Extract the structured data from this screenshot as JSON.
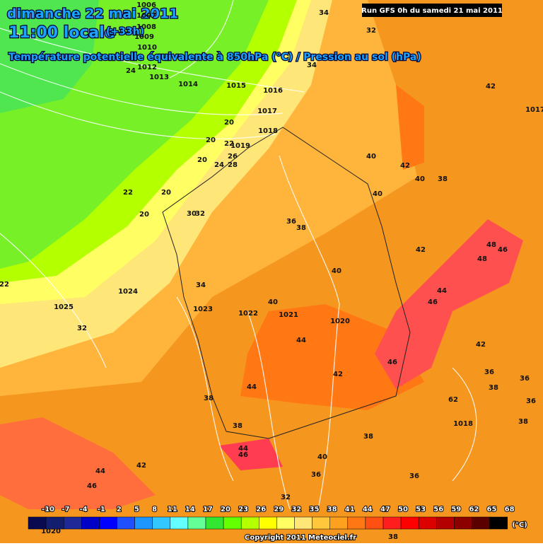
{
  "header": {
    "date": "dimanche 22 mai 2011",
    "time": "11:00 locale",
    "offset": "(+33h)",
    "subtitle": "Température potentielle équivalente à 850hPa (°C) / Pression au sol (hPa)",
    "run": "Run GFS 0h du samedi 21 mai 2011"
  },
  "legend": {
    "ticks": [
      "-10",
      "-7",
      "-4",
      "-1",
      "2",
      "5",
      "8",
      "11",
      "14",
      "17",
      "20",
      "23",
      "26",
      "29",
      "32",
      "35",
      "38",
      "41",
      "44",
      "47",
      "50",
      "53",
      "56",
      "59",
      "62",
      "65",
      "68"
    ],
    "colors": [
      "#0a0a50",
      "#141e6e",
      "#1e2896",
      "#0000c8",
      "#0000ff",
      "#1e50ff",
      "#1e96ff",
      "#32c8ff",
      "#64ffff",
      "#64ff96",
      "#32e632",
      "#64ff00",
      "#b4ff00",
      "#ffff00",
      "#ffff64",
      "#ffe678",
      "#ffc83c",
      "#ffa01e",
      "#ff7814",
      "#ff5014",
      "#ff1e1e",
      "#ff0000",
      "#dc0000",
      "#b40000",
      "#8c0000",
      "#5a0000",
      "#000000"
    ],
    "unit": "(°C)"
  },
  "footer": "Copyright 2011 Meteociel.fr",
  "labels": [
    "34",
    "32",
    "34",
    "42",
    "24",
    "20",
    "20",
    "22",
    "20",
    "24",
    "26",
    "28",
    "40",
    "42",
    "40",
    "38",
    "40",
    "22",
    "20",
    "20",
    "30",
    "32",
    "36",
    "38",
    "42",
    "48",
    "46",
    "48",
    "40",
    "34",
    "44",
    "46",
    "40",
    "22",
    "32",
    "44",
    "42",
    "46",
    "36",
    "36",
    "42",
    "38",
    "44",
    "38",
    "62",
    "36",
    "38",
    "38",
    "38",
    "44",
    "46",
    "40",
    "44",
    "42",
    "36",
    "46",
    "36",
    "32",
    "38",
    "1006",
    "1007",
    "1008",
    "1009",
    "1010",
    "1012",
    "1013",
    "1014",
    "1015",
    "1016",
    "1017",
    "1017",
    "1018",
    "1019",
    "1024",
    "1025",
    "1023",
    "1022",
    "1021",
    "1020",
    "1018",
    "1020"
  ]
}
